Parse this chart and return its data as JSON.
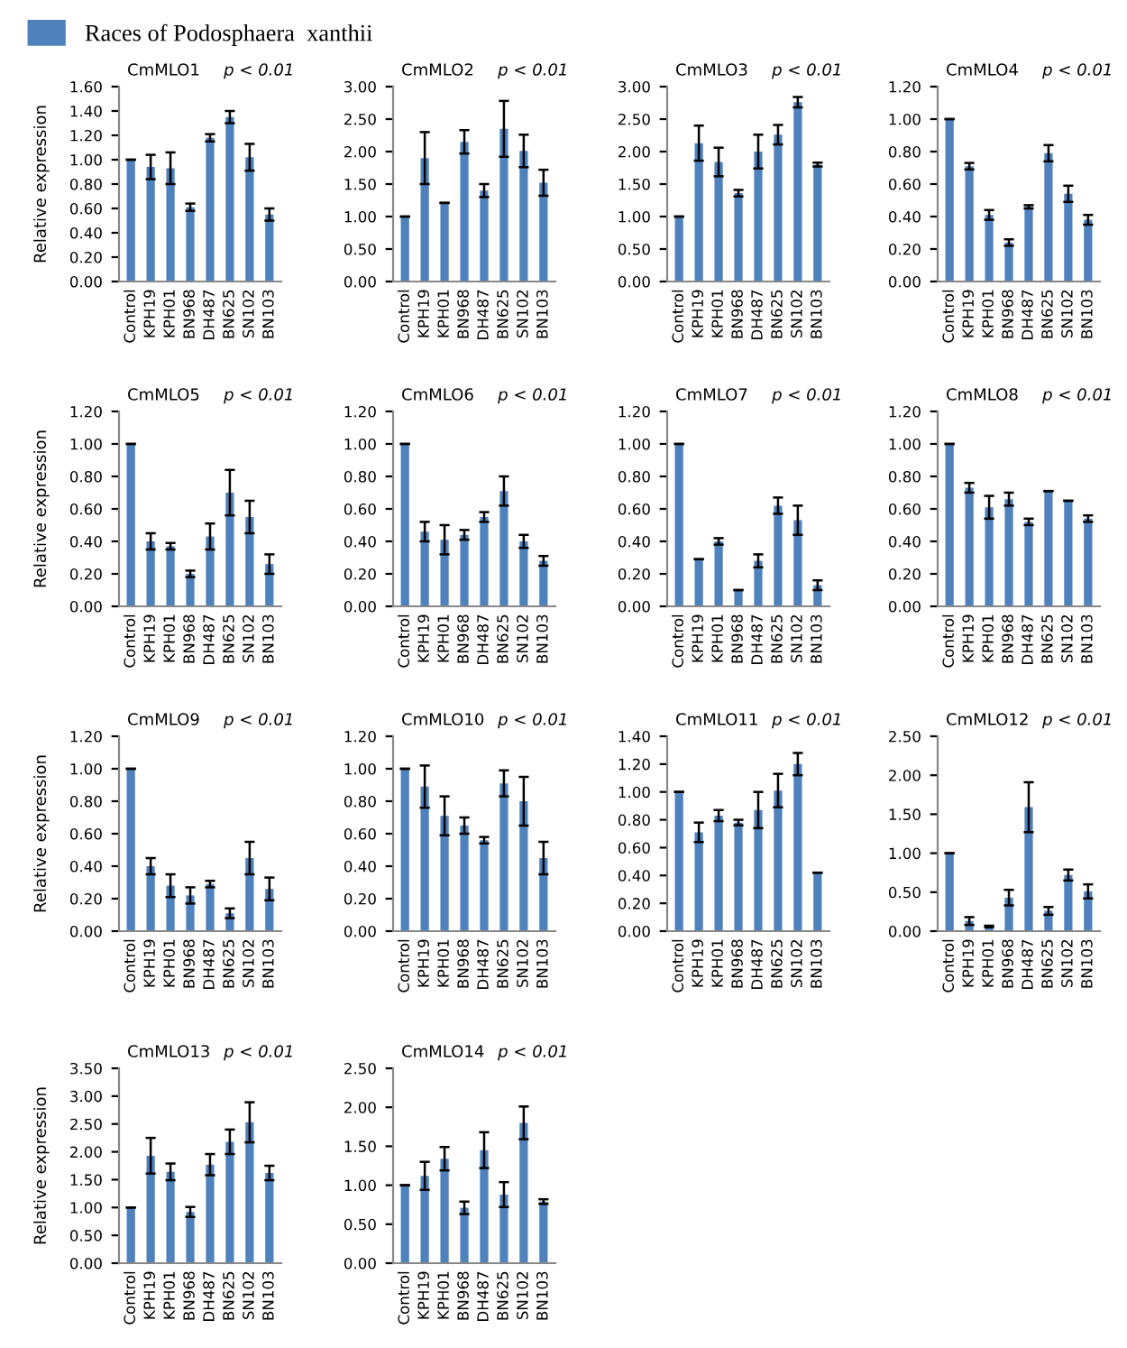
{
  "chart_data": [
    {
      "type": "bar",
      "title": "CmMLO1",
      "ylabel": "Relative expression",
      "annotations": [
        "p < 0.01"
      ],
      "legend": "top",
      "categories": [
        "Control",
        "KPH19",
        "KPH01",
        "BN968",
        "DH487",
        "BN625",
        "SN102",
        "BN103"
      ],
      "series": [
        {
          "name": "Races of Podosphaera  xanthii",
          "color": "#4f81bd",
          "values": [
            1.0,
            0.94,
            0.93,
            0.61,
            1.18,
            1.35,
            1.02,
            0.55
          ],
          "errors": [
            0,
            0.1,
            0.13,
            0.03,
            0.03,
            0.05,
            0.11,
            0.05
          ]
        }
      ],
      "ylim": [
        0,
        1.6
      ],
      "yticks": [
        {
          "value": 0,
          "label": "0.00"
        },
        {
          "value": 0.2,
          "label": "0.20"
        },
        {
          "value": 0.4,
          "label": "0.40"
        },
        {
          "value": 0.6,
          "label": "0.60"
        },
        {
          "value": 0.8,
          "label": "0.80"
        },
        {
          "value": 1.0,
          "label": "1.00"
        },
        {
          "value": 1.2,
          "label": "1.20"
        },
        {
          "value": 1.4,
          "label": "1.40"
        },
        {
          "value": 1.6,
          "label": "1.60"
        }
      ],
      "grid": false
    },
    {
      "type": "bar",
      "title": "CmMLO2",
      "annotations": [
        "p < 0.01"
      ],
      "categories": [
        "Control",
        "KPH19",
        "KPH01",
        "BN968",
        "DH487",
        "BN625",
        "SN102",
        "BN103"
      ],
      "color": "#4f81bd",
      "values": [
        1.0,
        1.9,
        1.21,
        2.15,
        1.4,
        2.35,
        2.01,
        1.52
      ],
      "errors": [
        0,
        0.4,
        0,
        0.18,
        0.1,
        0.43,
        0.25,
        0.2
      ],
      "ylim": [
        0,
        3
      ],
      "yticks": [
        {
          "value": 0,
          "label": "0.00"
        },
        {
          "value": 0.5,
          "label": "0.50"
        },
        {
          "value": 1.0,
          "label": "1.00"
        },
        {
          "value": 1.5,
          "label": "1.50"
        },
        {
          "value": 2.0,
          "label": "2.00"
        },
        {
          "value": 2.5,
          "label": "2.50"
        },
        {
          "value": 3.0,
          "label": "3.00"
        }
      ],
      "grid": false
    },
    {
      "type": "bar",
      "title": "CmMLO3",
      "annotations": [
        "p < 0.01"
      ],
      "categories": [
        "Control",
        "KPH19",
        "KPH01",
        "BN968",
        "DH487",
        "BN625",
        "SN102",
        "BN103"
      ],
      "color": "#4f81bd",
      "values": [
        1.0,
        2.13,
        1.84,
        1.36,
        2.0,
        2.26,
        2.76,
        1.8
      ],
      "errors": [
        0,
        0.27,
        0.22,
        0.05,
        0.26,
        0.15,
        0.08,
        0.03
      ],
      "ylim": [
        0,
        3
      ],
      "yticks": [
        {
          "value": 0,
          "label": "0.00"
        },
        {
          "value": 0.5,
          "label": "0.50"
        },
        {
          "value": 1.0,
          "label": "1.00"
        },
        {
          "value": 1.5,
          "label": "1.50"
        },
        {
          "value": 2.0,
          "label": "2.00"
        },
        {
          "value": 2.5,
          "label": "2.50"
        },
        {
          "value": 3.0,
          "label": "3.00"
        }
      ],
      "grid": false
    },
    {
      "type": "bar",
      "title": "CmMLO4",
      "annotations": [
        "p < 0.01"
      ],
      "categories": [
        "Control",
        "KPH19",
        "KPH01",
        "BN968",
        "DH487",
        "BN625",
        "SN102",
        "BN103"
      ],
      "color": "#4f81bd",
      "values": [
        1.0,
        0.71,
        0.41,
        0.24,
        0.46,
        0.79,
        0.54,
        0.38
      ],
      "errors": [
        0,
        0.02,
        0.03,
        0.02,
        0.01,
        0.05,
        0.05,
        0.03
      ],
      "ylim": [
        0,
        1.2
      ],
      "yticks": [
        {
          "value": 0,
          "label": "0.00"
        },
        {
          "value": 0.2,
          "label": "0.20"
        },
        {
          "value": 0.4,
          "label": "0.40"
        },
        {
          "value": 0.6,
          "label": "0.60"
        },
        {
          "value": 0.8,
          "label": "0.80"
        },
        {
          "value": 1.0,
          "label": "1.00"
        },
        {
          "value": 1.2,
          "label": "1.20"
        }
      ],
      "grid": false
    },
    {
      "type": "bar",
      "title": "CmMLO5",
      "ylabel": "Relative expression",
      "annotations": [
        "p < 0.01"
      ],
      "categories": [
        "Control",
        "KPH19",
        "KPH01",
        "BN968",
        "DH487",
        "BN625",
        "SN102",
        "BN103"
      ],
      "color": "#4f81bd",
      "values": [
        1.0,
        0.4,
        0.37,
        0.2,
        0.43,
        0.7,
        0.55,
        0.26
      ],
      "errors": [
        0,
        0.05,
        0.02,
        0.02,
        0.08,
        0.14,
        0.1,
        0.06
      ],
      "ylim": [
        0,
        1.2
      ],
      "yticks": [
        {
          "value": 0,
          "label": "0.00"
        },
        {
          "value": 0.2,
          "label": "0.20"
        },
        {
          "value": 0.4,
          "label": "0.40"
        },
        {
          "value": 0.6,
          "label": "0.60"
        },
        {
          "value": 0.8,
          "label": "0.80"
        },
        {
          "value": 1.0,
          "label": "1.00"
        },
        {
          "value": 1.2,
          "label": "1.20"
        }
      ],
      "grid": false
    },
    {
      "type": "bar",
      "title": "CmMLO6",
      "annotations": [
        "p < 0.01"
      ],
      "categories": [
        "Control",
        "KPH19",
        "KPH01",
        "BN968",
        "DH487",
        "BN625",
        "SN102",
        "BN103"
      ],
      "color": "#4f81bd",
      "values": [
        1.0,
        0.46,
        0.41,
        0.44,
        0.55,
        0.71,
        0.4,
        0.28
      ],
      "errors": [
        0,
        0.06,
        0.09,
        0.03,
        0.03,
        0.09,
        0.04,
        0.03
      ],
      "ylim": [
        0,
        1.2
      ],
      "yticks": [
        {
          "value": 0,
          "label": "0.00"
        },
        {
          "value": 0.2,
          "label": "0.20"
        },
        {
          "value": 0.4,
          "label": "0.40"
        },
        {
          "value": 0.6,
          "label": "0.60"
        },
        {
          "value": 0.8,
          "label": "0.80"
        },
        {
          "value": 1.0,
          "label": "1.00"
        },
        {
          "value": 1.2,
          "label": "1.20"
        }
      ],
      "grid": false
    },
    {
      "type": "bar",
      "title": "CmMLO7",
      "annotations": [
        "p < 0.01"
      ],
      "categories": [
        "Control",
        "KPH19",
        "KPH01",
        "BN968",
        "DH487",
        "BN625",
        "SN102",
        "BN103"
      ],
      "color": "#4f81bd",
      "values": [
        1.0,
        0.29,
        0.4,
        0.1,
        0.28,
        0.62,
        0.53,
        0.13
      ],
      "errors": [
        0,
        0,
        0.02,
        0,
        0.04,
        0.05,
        0.09,
        0.03
      ],
      "ylim": [
        0,
        1.2
      ],
      "yticks": [
        {
          "value": 0,
          "label": "0.00"
        },
        {
          "value": 0.2,
          "label": "0.20"
        },
        {
          "value": 0.4,
          "label": "0.40"
        },
        {
          "value": 0.6,
          "label": "0.60"
        },
        {
          "value": 0.8,
          "label": "0.80"
        },
        {
          "value": 1.0,
          "label": "1.00"
        },
        {
          "value": 1.2,
          "label": "1.20"
        }
      ],
      "grid": false
    },
    {
      "type": "bar",
      "title": "CmMLO8",
      "annotations": [
        "p < 0.01"
      ],
      "categories": [
        "Control",
        "KPH19",
        "KPH01",
        "BN968",
        "DH487",
        "BN625",
        "SN102",
        "BN103"
      ],
      "color": "#4f81bd",
      "values": [
        1.0,
        0.73,
        0.61,
        0.66,
        0.52,
        0.71,
        0.65,
        0.54
      ],
      "errors": [
        0,
        0.03,
        0.07,
        0.04,
        0.02,
        0,
        0,
        0.02
      ],
      "ylim": [
        0,
        1.2
      ],
      "yticks": [
        {
          "value": 0,
          "label": "0.00"
        },
        {
          "value": 0.2,
          "label": "0.20"
        },
        {
          "value": 0.4,
          "label": "0.40"
        },
        {
          "value": 0.6,
          "label": "0.60"
        },
        {
          "value": 0.8,
          "label": "0.80"
        },
        {
          "value": 1.0,
          "label": "1.00"
        },
        {
          "value": 1.2,
          "label": "1.20"
        }
      ],
      "grid": false
    },
    {
      "type": "bar",
      "title": "CmMLO9",
      "ylabel": "Relative expression",
      "annotations": [
        "p < 0.01"
      ],
      "categories": [
        "Control",
        "KPH19",
        "KPH01",
        "BN968",
        "DH487",
        "BN625",
        "SN102",
        "BN103"
      ],
      "color": "#4f81bd",
      "values": [
        1.0,
        0.4,
        0.28,
        0.22,
        0.29,
        0.11,
        0.45,
        0.26
      ],
      "errors": [
        0,
        0.05,
        0.07,
        0.05,
        0.02,
        0.03,
        0.1,
        0.07
      ],
      "ylim": [
        0,
        1.2
      ],
      "yticks": [
        {
          "value": 0,
          "label": "0.00"
        },
        {
          "value": 0.2,
          "label": "0.20"
        },
        {
          "value": 0.4,
          "label": "0.40"
        },
        {
          "value": 0.6,
          "label": "0.60"
        },
        {
          "value": 0.8,
          "label": "0.80"
        },
        {
          "value": 1.0,
          "label": "1.00"
        },
        {
          "value": 1.2,
          "label": "1.20"
        }
      ],
      "grid": false
    },
    {
      "type": "bar",
      "title": "CmMLO10",
      "annotations": [
        "p < 0.01"
      ],
      "categories": [
        "Control",
        "KPH19",
        "KPH01",
        "BN968",
        "DH487",
        "BN625",
        "SN102",
        "BN103"
      ],
      "color": "#4f81bd",
      "values": [
        1.0,
        0.89,
        0.71,
        0.65,
        0.56,
        0.91,
        0.8,
        0.45
      ],
      "errors": [
        0,
        0.13,
        0.12,
        0.05,
        0.02,
        0.08,
        0.15,
        0.1
      ],
      "ylim": [
        0,
        1.2
      ],
      "yticks": [
        {
          "value": 0,
          "label": "0.00"
        },
        {
          "value": 0.2,
          "label": "0.20"
        },
        {
          "value": 0.4,
          "label": "0.40"
        },
        {
          "value": 0.6,
          "label": "0.60"
        },
        {
          "value": 0.8,
          "label": "0.80"
        },
        {
          "value": 1.0,
          "label": "1.00"
        },
        {
          "value": 1.2,
          "label": "1.20"
        }
      ],
      "grid": false
    },
    {
      "type": "bar",
      "title": "CmMLO11",
      "annotations": [
        "p < 0.01"
      ],
      "categories": [
        "Control",
        "KPH19",
        "KPH01",
        "BN968",
        "DH487",
        "BN625",
        "SN102",
        "BN103"
      ],
      "color": "#4f81bd",
      "values": [
        1.0,
        0.71,
        0.83,
        0.78,
        0.87,
        1.01,
        1.2,
        0.42
      ],
      "errors": [
        0,
        0.07,
        0.04,
        0.02,
        0.13,
        0.12,
        0.08,
        0
      ],
      "ylim": [
        0,
        1.4
      ],
      "yticks": [
        {
          "value": 0,
          "label": "0.00"
        },
        {
          "value": 0.2,
          "label": "0.20"
        },
        {
          "value": 0.4,
          "label": "0.40"
        },
        {
          "value": 0.6,
          "label": "0.60"
        },
        {
          "value": 0.8,
          "label": "0.80"
        },
        {
          "value": 1.0,
          "label": "1.00"
        },
        {
          "value": 1.2,
          "label": "1.20"
        },
        {
          "value": 1.4,
          "label": "1.40"
        }
      ],
      "grid": false
    },
    {
      "type": "bar",
      "title": "CmMLO12",
      "annotations": [
        "p < 0.01"
      ],
      "categories": [
        "Control",
        "KPH19",
        "KPH01",
        "BN968",
        "DH487",
        "BN625",
        "SN102",
        "BN103"
      ],
      "color": "#4f81bd",
      "values": [
        1.0,
        0.13,
        0.06,
        0.43,
        1.59,
        0.26,
        0.72,
        0.51
      ],
      "errors": [
        0,
        0.05,
        0.01,
        0.1,
        0.32,
        0.05,
        0.07,
        0.09
      ],
      "ylim": [
        0,
        2.5
      ],
      "yticks": [
        {
          "value": 0,
          "label": "0.00"
        },
        {
          "value": 0.5,
          "label": "0.50"
        },
        {
          "value": 1.0,
          "label": "1.00"
        },
        {
          "value": 1.5,
          "label": "1.50"
        },
        {
          "value": 2.0,
          "label": "2.00"
        },
        {
          "value": 2.5,
          "label": "2.50"
        }
      ],
      "grid": false
    },
    {
      "type": "bar",
      "title": "CmMLO13",
      "ylabel": "Relative expression",
      "annotations": [
        "p < 0.01"
      ],
      "categories": [
        "Control",
        "KPH19",
        "KPH01",
        "BN968",
        "DH487",
        "BN625",
        "SN102",
        "BN103"
      ],
      "color": "#4f81bd",
      "values": [
        1.0,
        1.93,
        1.64,
        0.92,
        1.77,
        2.18,
        2.53,
        1.62
      ],
      "errors": [
        0,
        0.32,
        0.15,
        0.09,
        0.19,
        0.22,
        0.36,
        0.13
      ],
      "ylim": [
        0,
        3.5
      ],
      "yticks": [
        {
          "value": 0,
          "label": "0.00"
        },
        {
          "value": 0.5,
          "label": "0.50"
        },
        {
          "value": 1.0,
          "label": "1.00"
        },
        {
          "value": 1.5,
          "label": "1.50"
        },
        {
          "value": 2.0,
          "label": "2.00"
        },
        {
          "value": 2.5,
          "label": "2.50"
        },
        {
          "value": 3.0,
          "label": "3.00"
        },
        {
          "value": 3.5,
          "label": "3.50"
        }
      ],
      "grid": false
    },
    {
      "type": "bar",
      "title": "CmMLO14",
      "annotations": [
        "p < 0.01"
      ],
      "categories": [
        "Control",
        "KPH19",
        "KPH01",
        "BN968",
        "DH487",
        "BN625",
        "SN102",
        "BN103"
      ],
      "color": "#4f81bd",
      "values": [
        1.0,
        1.12,
        1.34,
        0.71,
        1.45,
        0.88,
        1.8,
        0.79
      ],
      "errors": [
        0,
        0.18,
        0.15,
        0.08,
        0.23,
        0.16,
        0.21,
        0.03
      ],
      "ylim": [
        0,
        2.5
      ],
      "yticks": [
        {
          "value": 0,
          "label": "0.00"
        },
        {
          "value": 0.5,
          "label": "0.50"
        },
        {
          "value": 1.0,
          "label": "1.00"
        },
        {
          "value": 1.5,
          "label": "1.50"
        },
        {
          "value": 2.0,
          "label": "2.00"
        },
        {
          "value": 2.5,
          "label": "2.50"
        }
      ],
      "grid": false
    }
  ]
}
